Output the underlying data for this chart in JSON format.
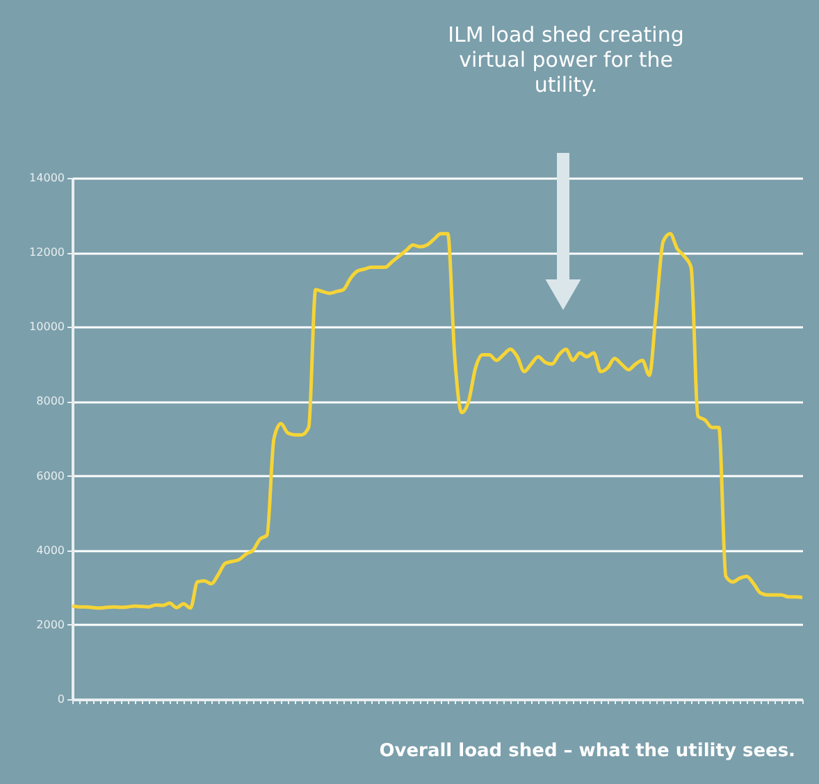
{
  "chart_data": {
    "type": "line",
    "annotations": [
      "ILM load shed creating virtual power for the utility.",
      "Overall load shed – what the utility sees."
    ],
    "categories": [
      null,
      null,
      null,
      null,
      null,
      null,
      null,
      null,
      null,
      null,
      null,
      null,
      null,
      null,
      null,
      null,
      null,
      null,
      null,
      null,
      null,
      null,
      null,
      null,
      null,
      null,
      null,
      null,
      null,
      null,
      null,
      null,
      null,
      null,
      null,
      null,
      null,
      null,
      null,
      null,
      null,
      null,
      null,
      null,
      null,
      null,
      null,
      null,
      null,
      null,
      null,
      null,
      null,
      null,
      null,
      null,
      null,
      null,
      null,
      null,
      null,
      null,
      null,
      null,
      null,
      null,
      null,
      null,
      null,
      null,
      null,
      null,
      null,
      null,
      null,
      null,
      null,
      null,
      null,
      null,
      null,
      null,
      null,
      null,
      null,
      null,
      null,
      null,
      null,
      null,
      null,
      null,
      null,
      null,
      null,
      null,
      null,
      null,
      null,
      null,
      null,
      null,
      null,
      null,
      null,
      null
    ],
    "series": [
      {
        "color": "#f5d437",
        "values": [
          2500,
          2480,
          2480,
          2460,
          2450,
          2470,
          2480,
          2470,
          2480,
          2500,
          2490,
          2480,
          2530,
          2520,
          2580,
          2460,
          2560,
          2450,
          3150,
          3180,
          3100,
          3350,
          3650,
          3700,
          3750,
          3900,
          4000,
          4300,
          4400,
          7000,
          7400,
          7150,
          7100,
          7100,
          7300,
          11000,
          10950,
          10900,
          10950,
          11000,
          11300,
          11500,
          11550,
          11600,
          11600,
          11600,
          11750,
          11900,
          12050,
          12200,
          12150,
          12200,
          12350,
          12500,
          12500,
          9200,
          7700,
          8000,
          8900,
          9250,
          9250,
          9100,
          9250,
          9400,
          9200,
          8800,
          9000,
          9200,
          9050,
          9000,
          9250,
          9400,
          9100,
          9300,
          9200,
          9300,
          8800,
          8900,
          9150,
          9000,
          8850,
          9000,
          9100,
          8700,
          10500,
          12300,
          12500,
          12100,
          11900,
          11600,
          7600,
          7500,
          7300,
          7300,
          3300,
          3150,
          3250,
          3300,
          3100,
          2850,
          2800,
          2800,
          2800,
          2750,
          2750,
          2730
        ]
      }
    ],
    "ylim": [
      0,
      14000
    ],
    "yticks": [
      0,
      2000,
      4000,
      6000,
      8000,
      10000,
      12000,
      14000
    ],
    "grid": "y",
    "tick_labels": "y",
    "marker": "none",
    "line_style": "solid"
  }
}
